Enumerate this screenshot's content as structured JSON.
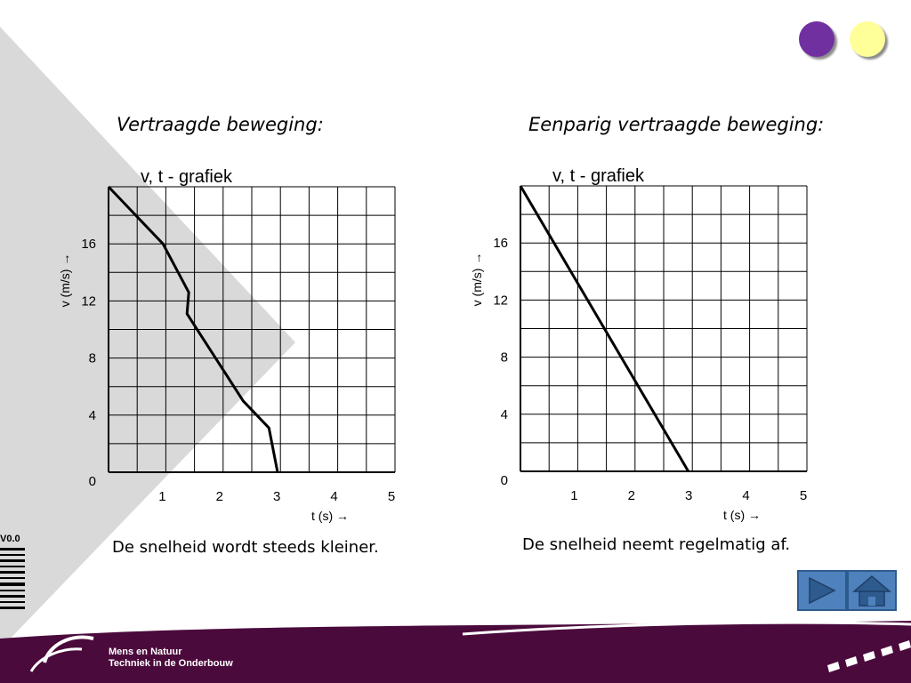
{
  "left_panel": {
    "heading": "Vertraagde beweging:",
    "caption": "De snelheid wordt steeds kleiner."
  },
  "right_panel": {
    "heading": "Eenparig vertraagde beweging:",
    "caption": "De snelheid neemt regelmatig af."
  },
  "footer": {
    "line1": "Mens en Natuur",
    "line2": "Techniek in de Onderbouw",
    "version": "V0.0"
  },
  "colors": {
    "purple_circle": "#7030a0",
    "yellow_circle": "#ffff99",
    "footer_bar": "#4b0a3c",
    "nav_button": "#4f81bd",
    "background_triangle": "#d9d9d9"
  },
  "icons": {
    "next": "play-triangle-icon",
    "home": "home-icon"
  },
  "chart_data": [
    {
      "type": "line",
      "title": "v, t - grafiek",
      "xlabel": "t (s) →",
      "ylabel": "v (m/s) →",
      "xlim": [
        0,
        5
      ],
      "ylim": [
        0,
        20
      ],
      "x_ticks": [
        "1",
        "2",
        "3",
        "4",
        "5"
      ],
      "y_ticks": [
        "4",
        "8",
        "12",
        "16"
      ],
      "origin_label": "0",
      "grid": true,
      "x": [
        0,
        0.95,
        1.4,
        1.37,
        2.35,
        2.8,
        2.95
      ],
      "y": [
        20,
        16,
        12.6,
        11.1,
        5,
        3.1,
        0
      ]
    },
    {
      "type": "line",
      "title": "v, t - grafiek",
      "xlabel": "t (s) →",
      "ylabel": "v (m/s) →",
      "xlim": [
        0,
        5
      ],
      "ylim": [
        0,
        20
      ],
      "x_ticks": [
        "1",
        "2",
        "3",
        "4",
        "5"
      ],
      "y_ticks": [
        "4",
        "8",
        "12",
        "16"
      ],
      "origin_label": "0",
      "grid": true,
      "x": [
        0,
        2.93
      ],
      "y": [
        20,
        0
      ]
    }
  ]
}
